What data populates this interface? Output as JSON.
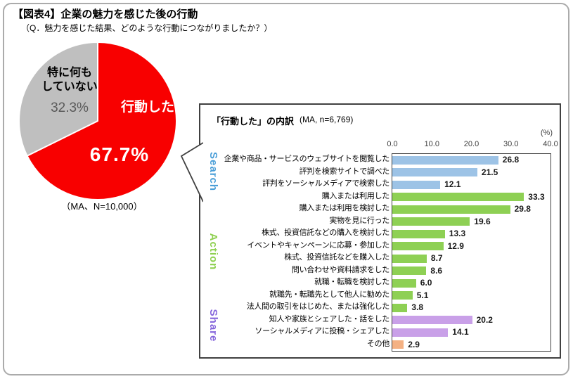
{
  "figure": {
    "title": "【図表4】企業の魅力を感じた後の行動",
    "subtitle": "（Q．魅力を感じた結果、どのような行動につながりましたか？）"
  },
  "pie": {
    "active_label": "行動した",
    "active_value": "67.7%",
    "inactive_label": "特に何も\nしていない",
    "inactive_value": "32.3%",
    "caption": "（MA、N=10,000）"
  },
  "panel": {
    "title": "「行動した」の内訳",
    "sample": "(MA, n=6,769)",
    "unit": "(%)"
  },
  "colors": {
    "pie_active": "#F80000",
    "pie_inactive": "#BFBFBF",
    "bar_blue": "#9DC3E6",
    "bar_green": "#8ED054",
    "bar_purple": "#C9A0E8",
    "bar_orange": "#F4B183",
    "group_search": "#4B9FD8",
    "group_action": "#8ED050",
    "group_share": "#8465DB"
  },
  "chart_data": [
    {
      "type": "pie",
      "title": "企業の魅力を感じた後の行動",
      "note": "（MA、N=10,000）",
      "labels": [
        "行動した",
        "特に何もしていない"
      ],
      "values": [
        67.7,
        32.3
      ],
      "colors": [
        "#F80000",
        "#BFBFBF"
      ],
      "start_angle_deg": 0,
      "direction": "clockwise"
    },
    {
      "type": "bar",
      "orientation": "horizontal",
      "title": "「行動した」の内訳",
      "sample": "(MA, n=6,769)",
      "xlabel": "(%)",
      "xlim": [
        0,
        40
      ],
      "tick_labels": [
        "0.0",
        "10.0",
        "20.0",
        "30.0",
        "40.0"
      ],
      "grid": false,
      "categories": [
        "企業や商品・サービスのウェブサイトを閲覧した",
        "評判を検索サイトで調べた",
        "評判をソーシャルメディアで検索した",
        "購入または利用した",
        "購入または利用を検討した",
        "実物を見に行った",
        "株式、投資信託などの購入を検討した",
        "イベントやキャンペーンに応募・参加した",
        "株式、投資信託などを購入した",
        "問い合わせや資料請求をした",
        "就職・転職を検討した",
        "就職先・転職先として他人に勧めた",
        "法人間の取引をはじめた、または強化した",
        "知人や家族とシェアした・話をした",
        "ソーシャルメディアに投稿・シェアした",
        "その他"
      ],
      "values": [
        26.8,
        21.5,
        12.1,
        33.3,
        29.8,
        19.6,
        13.3,
        12.9,
        8.7,
        8.6,
        6.0,
        5.1,
        3.8,
        20.2,
        14.1,
        2.9
      ],
      "bar_colors": [
        "#9DC3E6",
        "#9DC3E6",
        "#9DC3E6",
        "#8ED054",
        "#8ED054",
        "#8ED054",
        "#8ED054",
        "#8ED054",
        "#8ED054",
        "#8ED054",
        "#8ED054",
        "#8ED054",
        "#8ED054",
        "#C9A0E8",
        "#C9A0E8",
        "#F4B183"
      ],
      "groups": [
        {
          "name": "Search",
          "color": "#4B9FD8",
          "start_row": 0,
          "end_row": 2
        },
        {
          "name": "Action",
          "color": "#8ED050",
          "start_row": 3,
          "end_row": 12
        },
        {
          "name": "Share",
          "color": "#8465DB",
          "start_row": 13,
          "end_row": 14
        }
      ]
    }
  ]
}
